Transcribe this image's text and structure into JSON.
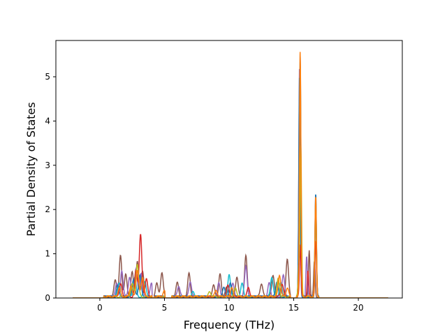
{
  "chart_data": {
    "type": "line",
    "title": "",
    "xlabel": "Frequency (THz)",
    "ylabel": "Partial Density of States",
    "xlim": [
      -3.4,
      23.4
    ],
    "ylim": [
      0,
      5.82
    ],
    "xticks": [
      0,
      5,
      10,
      15,
      20
    ],
    "xtick_labels": [
      "0",
      "5",
      "10",
      "15",
      "20"
    ],
    "yticks": [
      0,
      1,
      2,
      3,
      4,
      5
    ],
    "ytick_labels": [
      "0",
      "1",
      "2",
      "3",
      "4",
      "5"
    ],
    "grid": false,
    "legend": "none",
    "x_range": [
      -2.1,
      22.3
    ],
    "series": [
      {
        "color": "#8c564b",
        "values_note": "",
        "peaks": [
          [
            1.2,
            0.38
          ],
          [
            1.6,
            0.92
          ],
          [
            2.0,
            0.5
          ],
          [
            2.5,
            0.55
          ],
          [
            2.9,
            0.8
          ],
          [
            3.3,
            0.6
          ],
          [
            4.4,
            0.3
          ],
          [
            4.8,
            0.55
          ],
          [
            6.0,
            0.32
          ],
          [
            6.9,
            0.52
          ],
          [
            8.8,
            0.25
          ],
          [
            9.3,
            0.5
          ],
          [
            9.8,
            0.2
          ],
          [
            10.6,
            0.45
          ],
          [
            11.3,
            0.92
          ],
          [
            12.5,
            0.3
          ],
          [
            13.4,
            0.5
          ],
          [
            14.5,
            0.85
          ],
          [
            15.5,
            5.5
          ],
          [
            16.2,
            1.05
          ],
          [
            16.6,
            0.8
          ]
        ]
      },
      {
        "color": "#9467bd",
        "peaks": [
          [
            1.3,
            0.32
          ],
          [
            1.7,
            0.6
          ],
          [
            2.3,
            0.45
          ],
          [
            2.8,
            0.65
          ],
          [
            3.2,
            0.55
          ],
          [
            4.0,
            0.3
          ],
          [
            6.1,
            0.25
          ],
          [
            7.0,
            0.35
          ],
          [
            9.2,
            0.3
          ],
          [
            10.3,
            0.3
          ],
          [
            11.3,
            0.7
          ],
          [
            13.1,
            0.3
          ],
          [
            14.2,
            0.5
          ],
          [
            15.45,
            5.2
          ],
          [
            16.0,
            0.9
          ],
          [
            16.7,
            2.3
          ]
        ]
      },
      {
        "color": "#17becf",
        "peaks": [
          [
            1.5,
            0.3
          ],
          [
            2.7,
            0.45
          ],
          [
            3.5,
            0.35
          ],
          [
            7.2,
            0.1
          ],
          [
            10.0,
            0.5
          ],
          [
            11.0,
            0.3
          ],
          [
            13.3,
            0.45
          ],
          [
            14.0,
            0.3
          ],
          [
            15.5,
            5.3
          ],
          [
            16.7,
            2.0
          ]
        ]
      },
      {
        "color": "#1f77b4",
        "peaks": [
          [
            1.4,
            0.25
          ],
          [
            2.6,
            0.4
          ],
          [
            3.1,
            0.5
          ],
          [
            9.6,
            0.2
          ],
          [
            10.1,
            0.3
          ],
          [
            13.7,
            0.35
          ],
          [
            15.45,
            5.0
          ],
          [
            16.7,
            2.36
          ]
        ]
      },
      {
        "color": "#d62728",
        "peaks": [
          [
            1.6,
            0.3
          ],
          [
            2.8,
            0.6
          ],
          [
            3.15,
            1.4
          ],
          [
            3.6,
            0.4
          ],
          [
            9.9,
            0.25
          ],
          [
            11.5,
            0.2
          ],
          [
            14.1,
            0.3
          ],
          [
            15.5,
            1.2
          ],
          [
            16.1,
            0.6
          ],
          [
            16.7,
            1.25
          ]
        ]
      },
      {
        "color": "#bcbd22",
        "peaks": [
          [
            2.5,
            0.3
          ],
          [
            2.9,
            0.75
          ],
          [
            8.5,
            0.1
          ],
          [
            10.5,
            0.2
          ],
          [
            13.8,
            0.4
          ],
          [
            15.4,
            0.7
          ],
          [
            15.55,
            3.4
          ],
          [
            16.7,
            2.2
          ]
        ]
      },
      {
        "color": "#ff7f0e",
        "peaks": [
          [
            1.5,
            0.2
          ],
          [
            2.4,
            0.25
          ],
          [
            2.9,
            0.6
          ],
          [
            3.3,
            0.45
          ],
          [
            5.0,
            0.12
          ],
          [
            9.0,
            0.15
          ],
          [
            10.2,
            0.2
          ],
          [
            13.9,
            0.5
          ],
          [
            14.5,
            0.2
          ],
          [
            15.5,
            5.55
          ],
          [
            16.7,
            2.3
          ]
        ]
      }
    ]
  }
}
